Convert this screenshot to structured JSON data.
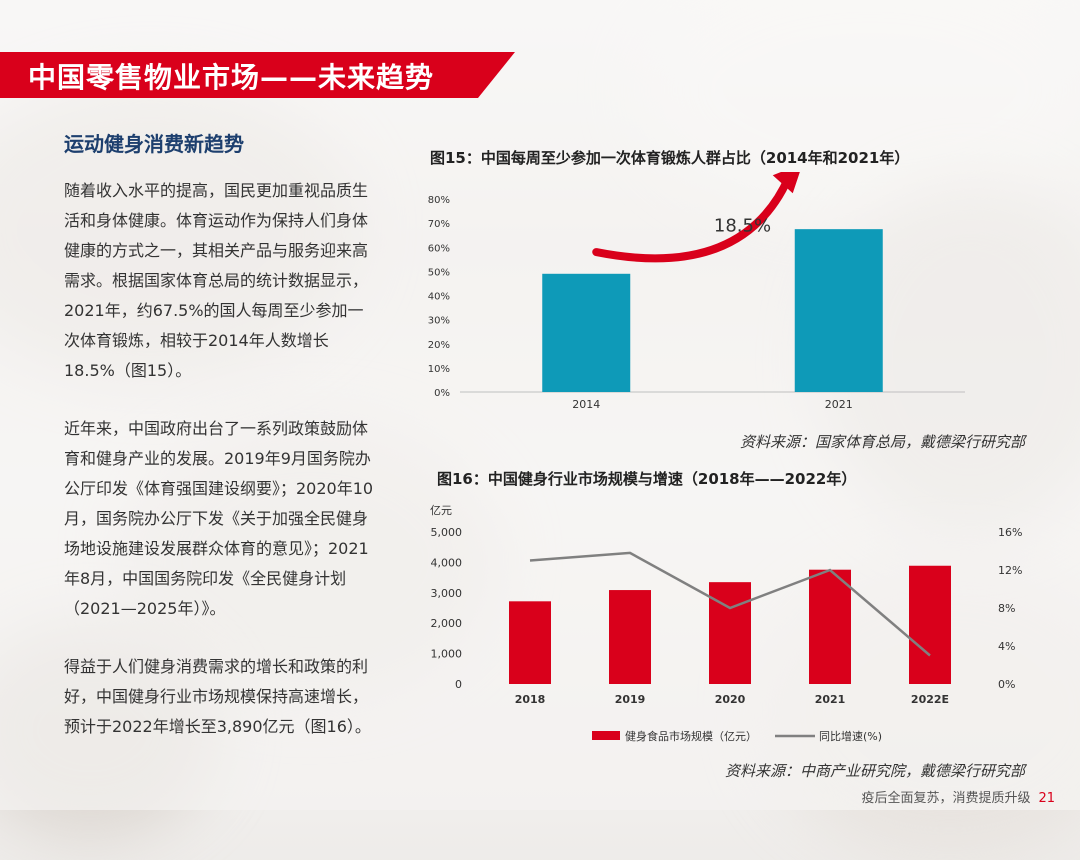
{
  "page": {
    "title": "中国零售物业市场——未来趋势",
    "subheading": "运动健身消费新趋势",
    "paragraphs": [
      "随着收入水平的提高，国民更加重视品质生活和身体健康。体育运动作为保持人们身体健康的方式之一，其相关产品与服务迎来高需求。根据国家体育总局的统计数据显示，2021年，约67.5%的国人每周至少参加一次体育锻炼，相较于2014年人数增长18.5%（图15）。",
      "近年来，中国政府出台了一系列政策鼓励体育和健身产业的发展。2019年9月国务院办公厅印发《体育强国建设纲要》；2020年10月，国务院办公厅下发《关于加强全民健身场地设施建设发展群众体育的意见》；2021年8月，中国国务院印发《全民健身计划（2021—2025年）》。",
      "得益于人们健身消费需求的增长和政策的利好，中国健身行业市场规模保持高速增长，预计于2022年增长至3,890亿元（图16）。"
    ],
    "footer_text": "疫后全面复苏，消费提质升级",
    "page_number": "21",
    "colors": {
      "red": "#d9001b",
      "teal": "#0e9ab8",
      "grey_line": "#808080",
      "navy": "#1d3f6e"
    }
  },
  "figure15": {
    "title": "图15：中国每周至少参加一次体育锻炼人群占比（2014年和2021年）",
    "source": "资料来源：国家体育总局，戴德梁行研究部",
    "annotation": "18.5%"
  },
  "figure16": {
    "title": "图16：中国健身行业市场规模与增速（2018年——2022年）",
    "source": "资料来源：中商产业研究院，戴德梁行研究部",
    "y_unit": "亿元"
  },
  "chart_data": [
    {
      "type": "bar",
      "title": "图15：中国每周至少参加一次体育锻炼人群占比（2014年和2021年）",
      "categories": [
        "2014",
        "2021"
      ],
      "values": [
        0.49,
        0.675
      ],
      "ylim": [
        0,
        0.8
      ],
      "y_ticks": [
        "0%",
        "10%",
        "20%",
        "30%",
        "40%",
        "50%",
        "60%",
        "70%",
        "80%"
      ],
      "bar_color": "#0e9ab8",
      "annotation": "18.5%",
      "grid": false
    },
    {
      "type": "bar",
      "title": "图16：中国健身行业市场规模与增速（2018年——2022年）",
      "categories": [
        "2018",
        "2019",
        "2020",
        "2021",
        "2022E"
      ],
      "ylabel": "亿元",
      "ylim": [
        0,
        5000
      ],
      "y_ticks": [
        "0",
        "1,000",
        "2,000",
        "3,000",
        "4,000",
        "5,000"
      ],
      "y2lim": [
        0,
        0.16
      ],
      "y2_ticks": [
        "0%",
        "4%",
        "8%",
        "12%",
        "16%"
      ],
      "series": [
        {
          "name": "健身食品市场规模（亿元）",
          "type": "bar",
          "color": "#d9001b",
          "values": [
            2720,
            3090,
            3350,
            3760,
            3890
          ]
        },
        {
          "name": "同比增速(%)",
          "type": "line",
          "axis": "right",
          "color": "#808080",
          "values": [
            0.13,
            0.138,
            0.08,
            0.12,
            0.03
          ]
        }
      ],
      "legend_position": "bottom",
      "grid": false
    }
  ]
}
